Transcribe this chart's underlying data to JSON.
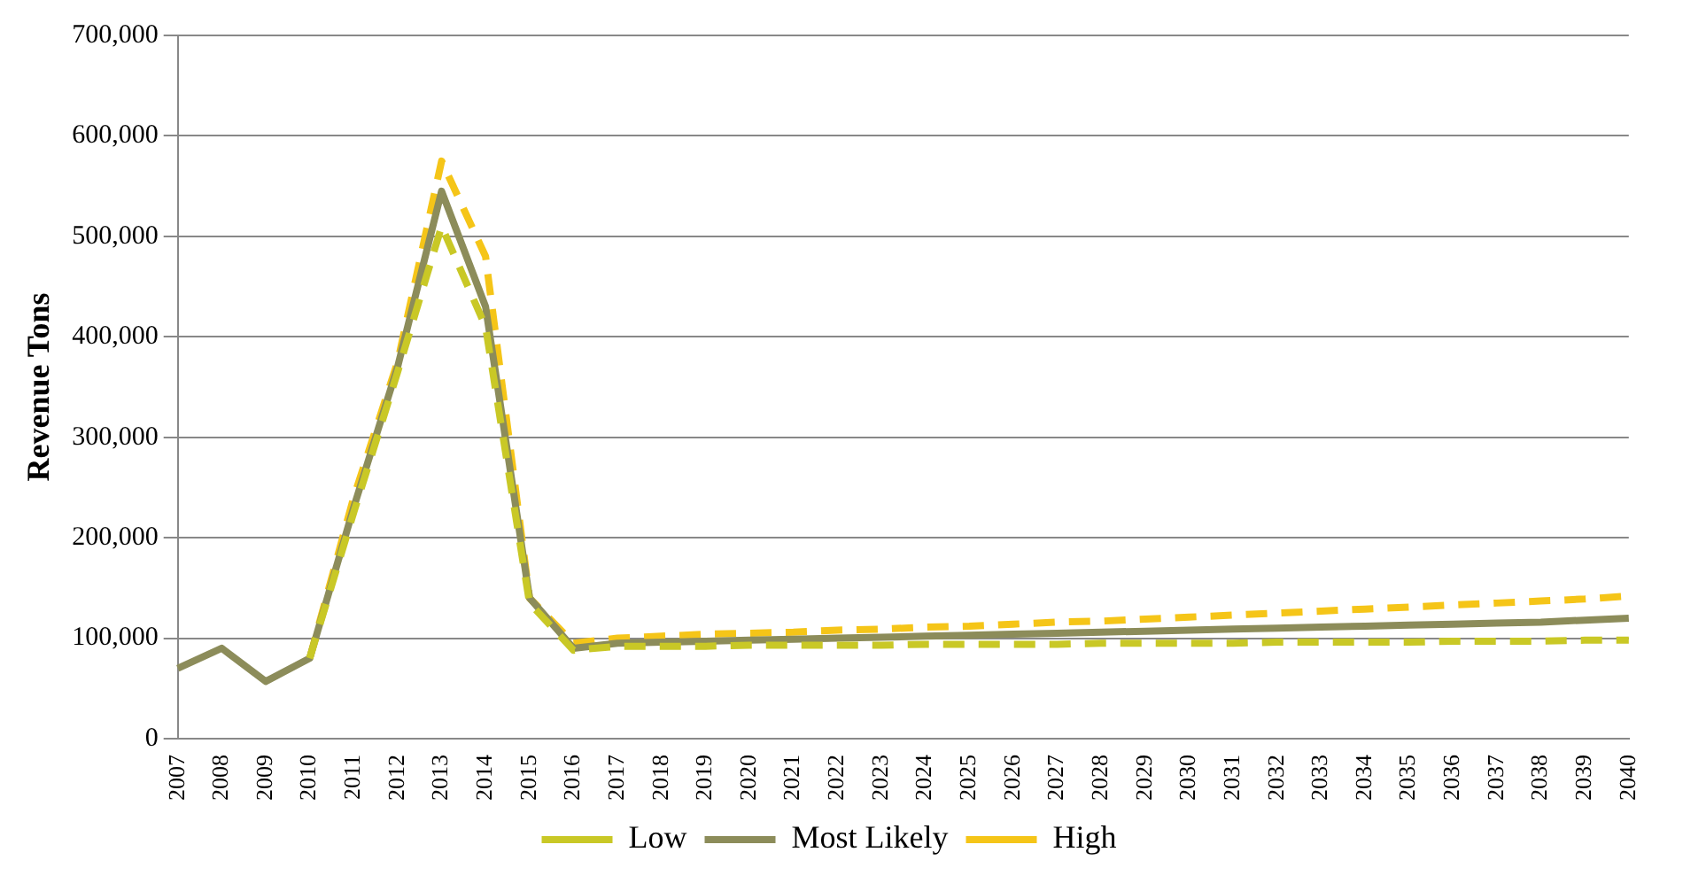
{
  "chart_data": {
    "type": "line",
    "ylabel": "Revenue Tons",
    "categories": [
      "2007",
      "2008",
      "2009",
      "2010",
      "2011",
      "2012",
      "2013",
      "2014",
      "2015",
      "2016",
      "2017",
      "2018",
      "2019",
      "2020",
      "2021",
      "2022",
      "2023",
      "2024",
      "2025",
      "2026",
      "2027",
      "2028",
      "2029",
      "2030",
      "2031",
      "2032",
      "2033",
      "2034",
      "2035",
      "2036",
      "2037",
      "2038",
      "2039",
      "2040"
    ],
    "series": [
      {
        "name": "Low",
        "color": "#c9c826",
        "line_style": "dashed",
        "values": [
          null,
          null,
          null,
          80000,
          225000,
          365000,
          510000,
          410000,
          135000,
          88000,
          92000,
          92000,
          92000,
          93000,
          93000,
          93000,
          93000,
          94000,
          94000,
          94000,
          94000,
          95000,
          95000,
          95000,
          95000,
          96000,
          96000,
          96000,
          96000,
          97000,
          97000,
          97000,
          98000,
          98000
        ]
      },
      {
        "name": "Most Likely",
        "color": "#8c8c5a",
        "line_style": "solid",
        "values": [
          70000,
          90000,
          57000,
          80000,
          230000,
          370000,
          545000,
          430000,
          140000,
          90000,
          95000,
          96000,
          97000,
          98000,
          99000,
          100000,
          101000,
          102000,
          103000,
          104000,
          105000,
          106000,
          107000,
          108000,
          109000,
          110000,
          111000,
          112000,
          113000,
          114000,
          115000,
          116000,
          118000,
          120000
        ]
      },
      {
        "name": "High",
        "color": "#f5c518",
        "line_style": "dashed",
        "values": [
          null,
          null,
          null,
          80000,
          240000,
          375000,
          575000,
          480000,
          140000,
          95000,
          100000,
          102000,
          104000,
          105000,
          106000,
          108000,
          109000,
          111000,
          112000,
          114000,
          116000,
          117000,
          119000,
          121000,
          123000,
          125000,
          127000,
          129000,
          131000,
          133000,
          135000,
          137000,
          139000,
          142000
        ]
      }
    ],
    "ylim": [
      0,
      700000
    ],
    "yticks": [
      {
        "value": 0,
        "label": "0"
      },
      {
        "value": 100000,
        "label": "100,000"
      },
      {
        "value": 200000,
        "label": "200,000"
      },
      {
        "value": 300000,
        "label": "300,000"
      },
      {
        "value": 400000,
        "label": "400,000"
      },
      {
        "value": 500000,
        "label": "500,000"
      },
      {
        "value": 600000,
        "label": "600,000"
      },
      {
        "value": 700000,
        "label": "700,000"
      }
    ],
    "grid": "y",
    "legend": "bottom",
    "marker": "none"
  }
}
